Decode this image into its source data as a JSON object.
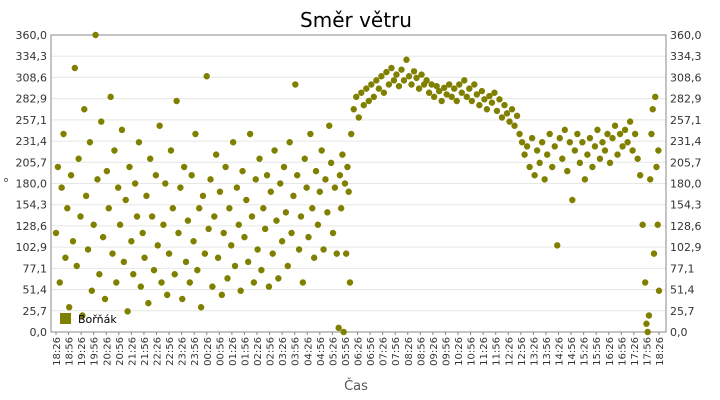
{
  "chart_data": {
    "type": "scatter",
    "title": "Směr větru",
    "xlabel": "Čas",
    "ylabel": "°",
    "ylim": [
      0,
      360
    ],
    "yticks": [
      "0,0",
      "25,7",
      "51,4",
      "77,1",
      "102,9",
      "128,6",
      "154,3",
      "180,0",
      "205,7",
      "231,4",
      "257,1",
      "282,9",
      "308,6",
      "334,3",
      "360,0"
    ],
    "x_labels": [
      "18:26",
      "18:56",
      "19:26",
      "19:56",
      "20:26",
      "20:56",
      "21:26",
      "21:56",
      "22:26",
      "22:56",
      "23:26",
      "23:56",
      "00:26",
      "00:56",
      "01:26",
      "01:56",
      "02:26",
      "02:56",
      "03:26",
      "03:56",
      "04:26",
      "04:56",
      "05:26",
      "05:56",
      "06:26",
      "06:56",
      "07:26",
      "07:56",
      "08:26",
      "08:56",
      "09:26",
      "09:56",
      "10:26",
      "10:56",
      "11:26",
      "11:56",
      "12:26",
      "12:56",
      "13:26",
      "13:56",
      "14:26",
      "14:56",
      "15:26",
      "15:56",
      "16:26",
      "16:56",
      "17:26",
      "17:56",
      "18:26"
    ],
    "grid": true,
    "legend_position": "bottom-left",
    "color": "#808000",
    "series": [
      {
        "name": "Bořňák",
        "points": [
          [
            0,
            120
          ],
          [
            0.3,
            200
          ],
          [
            0.6,
            60
          ],
          [
            0.9,
            175
          ],
          [
            1.2,
            240
          ],
          [
            1.5,
            90
          ],
          [
            1.8,
            150
          ],
          [
            2.1,
            30
          ],
          [
            2.4,
            190
          ],
          [
            2.7,
            110
          ],
          [
            3.0,
            320
          ],
          [
            3.3,
            80
          ],
          [
            3.6,
            210
          ],
          [
            3.9,
            140
          ],
          [
            4.2,
            20
          ],
          [
            4.5,
            270
          ],
          [
            4.8,
            165
          ],
          [
            5.1,
            100
          ],
          [
            5.4,
            230
          ],
          [
            5.7,
            50
          ],
          [
            6.0,
            130
          ],
          [
            6.3,
            360
          ],
          [
            6.6,
            185
          ],
          [
            6.9,
            70
          ],
          [
            7.2,
            255
          ],
          [
            7.5,
            115
          ],
          [
            7.8,
            40
          ],
          [
            8.1,
            195
          ],
          [
            8.4,
            150
          ],
          [
            8.7,
            285
          ],
          [
            9.0,
            95
          ],
          [
            9.3,
            220
          ],
          [
            9.6,
            60
          ],
          [
            9.9,
            175
          ],
          [
            10.2,
            130
          ],
          [
            10.5,
            245
          ],
          [
            10.8,
            85
          ],
          [
            11.1,
            160
          ],
          [
            11.4,
            25
          ],
          [
            11.7,
            200
          ],
          [
            12.0,
            110
          ],
          [
            12.3,
            70
          ],
          [
            12.6,
            180
          ],
          [
            12.9,
            140
          ],
          [
            13.2,
            230
          ],
          [
            13.5,
            55
          ],
          [
            13.8,
            120
          ],
          [
            14.1,
            90
          ],
          [
            14.4,
            165
          ],
          [
            14.7,
            35
          ],
          [
            15.0,
            210
          ],
          [
            15.3,
            140
          ],
          [
            15.6,
            75
          ],
          [
            15.9,
            190
          ],
          [
            16.2,
            105
          ],
          [
            16.5,
            250
          ],
          [
            16.8,
            60
          ],
          [
            17.1,
            130
          ],
          [
            17.4,
            180
          ],
          [
            17.7,
            45
          ],
          [
            18.0,
            95
          ],
          [
            18.3,
            220
          ],
          [
            18.6,
            150
          ],
          [
            18.9,
            70
          ],
          [
            19.2,
            280
          ],
          [
            19.5,
            120
          ],
          [
            19.8,
            175
          ],
          [
            20.1,
            40
          ],
          [
            20.4,
            200
          ],
          [
            20.7,
            85
          ],
          [
            21.0,
            135
          ],
          [
            21.3,
            60
          ],
          [
            21.6,
            190
          ],
          [
            21.9,
            110
          ],
          [
            22.2,
            240
          ],
          [
            22.5,
            75
          ],
          [
            22.8,
            150
          ],
          [
            23.1,
            30
          ],
          [
            23.4,
            165
          ],
          [
            23.7,
            95
          ],
          [
            24.0,
            310
          ],
          [
            24.3,
            125
          ],
          [
            24.6,
            185
          ],
          [
            24.9,
            55
          ],
          [
            25.2,
            140
          ],
          [
            25.5,
            215
          ],
          [
            25.8,
            90
          ],
          [
            26.1,
            170
          ],
          [
            26.4,
            45
          ],
          [
            26.7,
            120
          ],
          [
            27.0,
            200
          ],
          [
            27.3,
            65
          ],
          [
            27.6,
            150
          ],
          [
            27.9,
            105
          ],
          [
            28.2,
            230
          ],
          [
            28.5,
            80
          ],
          [
            28.8,
            175
          ],
          [
            29.1,
            130
          ],
          [
            29.4,
            50
          ],
          [
            29.7,
            195
          ],
          [
            30.0,
            115
          ],
          [
            30.3,
            160
          ],
          [
            30.6,
            85
          ],
          [
            30.9,
            240
          ],
          [
            31.2,
            140
          ],
          [
            31.5,
            60
          ],
          [
            31.8,
            185
          ],
          [
            32.1,
            100
          ],
          [
            32.4,
            210
          ],
          [
            32.7,
            75
          ],
          [
            33.0,
            150
          ],
          [
            33.3,
            125
          ],
          [
            33.6,
            190
          ],
          [
            33.9,
            55
          ],
          [
            34.2,
            170
          ],
          [
            34.5,
            95
          ],
          [
            34.8,
            220
          ],
          [
            35.1,
            135
          ],
          [
            35.4,
            65
          ],
          [
            35.7,
            180
          ],
          [
            36.0,
            110
          ],
          [
            36.3,
            200
          ],
          [
            36.6,
            145
          ],
          [
            36.9,
            80
          ],
          [
            37.2,
            230
          ],
          [
            37.5,
            120
          ],
          [
            37.8,
            165
          ],
          [
            38.1,
            300
          ],
          [
            38.4,
            190
          ],
          [
            38.7,
            100
          ],
          [
            39.0,
            140
          ],
          [
            39.3,
            60
          ],
          [
            39.6,
            210
          ],
          [
            39.9,
            175
          ],
          [
            40.2,
            115
          ],
          [
            40.5,
            240
          ],
          [
            40.8,
            150
          ],
          [
            41.1,
            90
          ],
          [
            41.4,
            195
          ],
          [
            41.7,
            130
          ],
          [
            42.0,
            170
          ],
          [
            42.3,
            220
          ],
          [
            42.6,
            100
          ],
          [
            42.9,
            185
          ],
          [
            43.2,
            145
          ],
          [
            43.5,
            250
          ],
          [
            43.8,
            205
          ],
          [
            44.1,
            120
          ],
          [
            44.4,
            175
          ],
          [
            44.7,
            95
          ],
          [
            45.0,
            5
          ],
          [
            45.2,
            190
          ],
          [
            45.4,
            150
          ],
          [
            45.6,
            215
          ],
          [
            45.8,
            0
          ],
          [
            46.0,
            180
          ],
          [
            46.2,
            95
          ],
          [
            46.4,
            200
          ],
          [
            46.6,
            170
          ],
          [
            46.8,
            60
          ],
          [
            47.0,
            240
          ],
          [
            47.4,
            270
          ],
          [
            47.8,
            285
          ],
          [
            48.2,
            260
          ],
          [
            48.6,
            290
          ],
          [
            49.0,
            275
          ],
          [
            49.4,
            295
          ],
          [
            49.8,
            280
          ],
          [
            50.2,
            300
          ],
          [
            50.6,
            285
          ],
          [
            51.0,
            305
          ],
          [
            51.4,
            295
          ],
          [
            51.8,
            310
          ],
          [
            52.2,
            290
          ],
          [
            52.6,
            315
          ],
          [
            53.0,
            300
          ],
          [
            53.4,
            320
          ],
          [
            53.8,
            305
          ],
          [
            54.2,
            312
          ],
          [
            54.6,
            298
          ],
          [
            55.0,
            318
          ],
          [
            55.4,
            305
          ],
          [
            55.8,
            330
          ],
          [
            56.2,
            310
          ],
          [
            56.6,
            300
          ],
          [
            57.0,
            316
          ],
          [
            57.4,
            308
          ],
          [
            57.8,
            295
          ],
          [
            58.2,
            312
          ],
          [
            58.6,
            300
          ],
          [
            59.0,
            305
          ],
          [
            59.4,
            290
          ],
          [
            59.8,
            300
          ],
          [
            60.2,
            285
          ],
          [
            60.6,
            298
          ],
          [
            61.0,
            292
          ],
          [
            61.4,
            280
          ],
          [
            61.8,
            296
          ],
          [
            62.2,
            288
          ],
          [
            62.6,
            300
          ],
          [
            63.0,
            285
          ],
          [
            63.4,
            295
          ],
          [
            63.8,
            280
          ],
          [
            64.2,
            300
          ],
          [
            64.6,
            290
          ],
          [
            65.0,
            305
          ],
          [
            65.4,
            285
          ],
          [
            65.8,
            295
          ],
          [
            66.2,
            280
          ],
          [
            66.6,
            300
          ],
          [
            67.0,
            288
          ],
          [
            67.4,
            275
          ],
          [
            67.8,
            292
          ],
          [
            68.2,
            282
          ],
          [
            68.6,
            270
          ],
          [
            69.0,
            286
          ],
          [
            69.4,
            278
          ],
          [
            69.8,
            290
          ],
          [
            70.2,
            268
          ],
          [
            70.6,
            282
          ],
          [
            71.0,
            260
          ],
          [
            71.4,
            275
          ],
          [
            71.8,
            265
          ],
          [
            72.2,
            255
          ],
          [
            72.6,
            270
          ],
          [
            73.0,
            250
          ],
          [
            73.4,
            262
          ],
          [
            73.8,
            240
          ],
          [
            74.2,
            230
          ],
          [
            74.6,
            215
          ],
          [
            75.0,
            225
          ],
          [
            75.4,
            200
          ],
          [
            75.8,
            235
          ],
          [
            76.2,
            190
          ],
          [
            76.6,
            220
          ],
          [
            77.0,
            205
          ],
          [
            77.4,
            230
          ],
          [
            77.8,
            185
          ],
          [
            78.2,
            215
          ],
          [
            78.6,
            240
          ],
          [
            79.0,
            200
          ],
          [
            79.4,
            225
          ],
          [
            79.8,
            105
          ],
          [
            80.2,
            235
          ],
          [
            80.6,
            210
          ],
          [
            81.0,
            245
          ],
          [
            81.4,
            195
          ],
          [
            81.8,
            230
          ],
          [
            82.2,
            160
          ],
          [
            82.6,
            220
          ],
          [
            83.0,
            240
          ],
          [
            83.4,
            205
          ],
          [
            83.8,
            230
          ],
          [
            84.2,
            185
          ],
          [
            84.6,
            215
          ],
          [
            85.0,
            235
          ],
          [
            85.4,
            200
          ],
          [
            85.8,
            225
          ],
          [
            86.2,
            245
          ],
          [
            86.6,
            210
          ],
          [
            87.0,
            230
          ],
          [
            87.4,
            220
          ],
          [
            87.8,
            240
          ],
          [
            88.2,
            205
          ],
          [
            88.6,
            235
          ],
          [
            89.0,
            250
          ],
          [
            89.4,
            215
          ],
          [
            89.8,
            240
          ],
          [
            90.2,
            225
          ],
          [
            90.6,
            245
          ],
          [
            91.0,
            230
          ],
          [
            91.4,
            255
          ],
          [
            91.8,
            220
          ],
          [
            92.2,
            240
          ],
          [
            92.6,
            210
          ],
          [
            93.0,
            190
          ],
          [
            93.4,
            130
          ],
          [
            93.8,
            60
          ],
          [
            94.0,
            10
          ],
          [
            94.2,
            0
          ],
          [
            94.4,
            20
          ],
          [
            94.6,
            185
          ],
          [
            94.8,
            240
          ],
          [
            95.0,
            270
          ],
          [
            95.2,
            95
          ],
          [
            95.4,
            285
          ],
          [
            95.6,
            200
          ],
          [
            95.8,
            130
          ],
          [
            95.9,
            220
          ],
          [
            96.0,
            50
          ]
        ]
      }
    ]
  }
}
